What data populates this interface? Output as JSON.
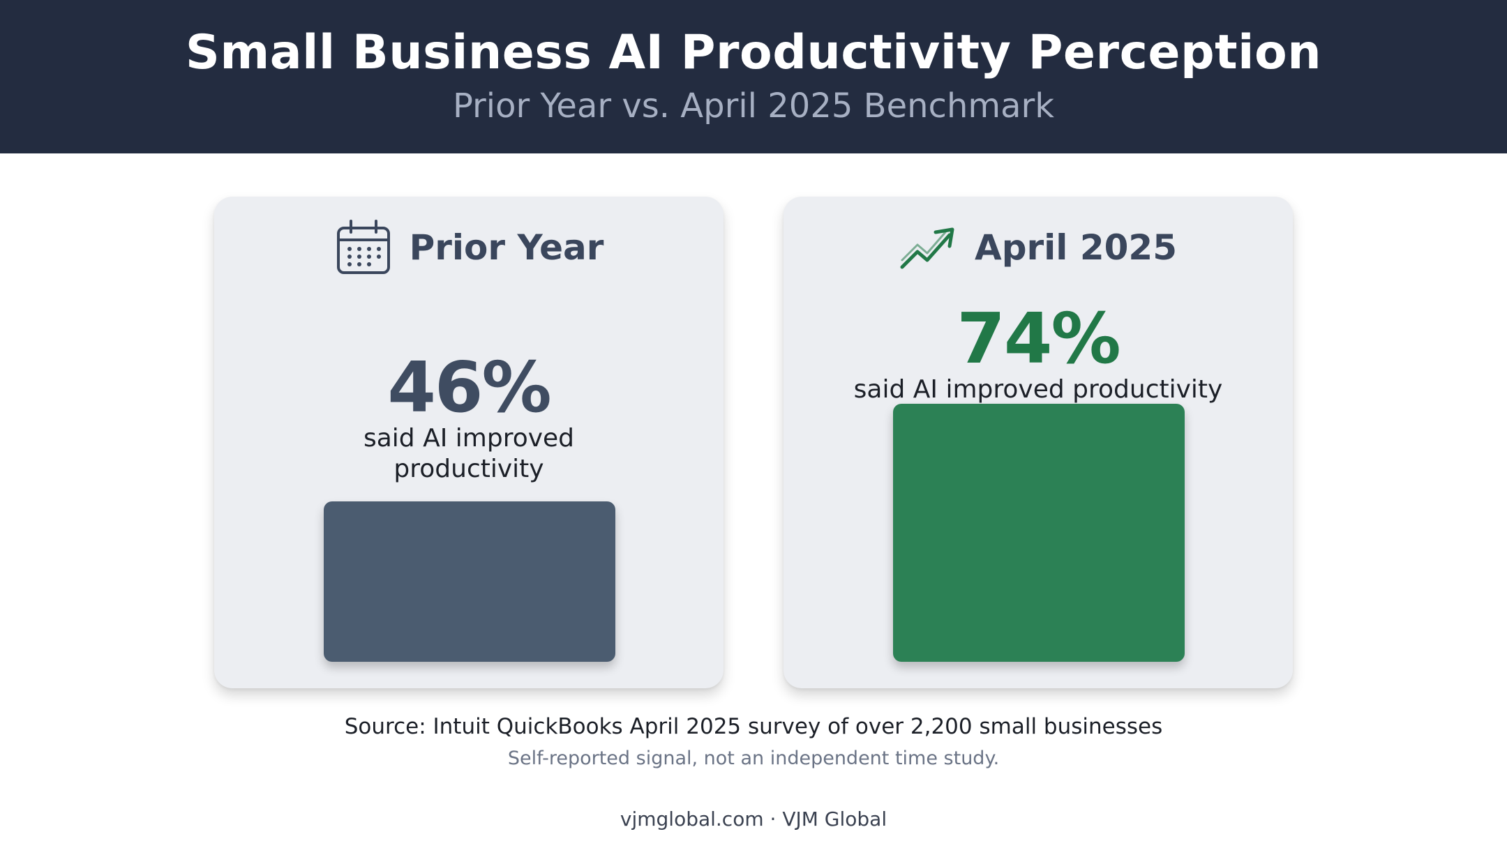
{
  "header": {
    "title": "Small Business AI Productivity Perception",
    "subtitle": "Prior Year vs. April 2025 Benchmark"
  },
  "cards": [
    {
      "label": "Prior Year",
      "icon": "calendar-icon",
      "value_text": "46%",
      "caption": "said AI improved productivity",
      "color": "#4b5c70",
      "value_color": "#3f4c61"
    },
    {
      "label": "April 2025",
      "icon": "trending-up-icon",
      "value_text": "74%",
      "caption": "said AI improved productivity",
      "color": "#2c8155",
      "value_color": "#217847"
    }
  ],
  "chart_data": {
    "type": "bar",
    "categories": [
      "Prior Year",
      "April 2025"
    ],
    "values": [
      46,
      74
    ],
    "title": "Small Business AI Productivity Perception",
    "subtitle": "Prior Year vs. April 2025 Benchmark",
    "ylim": [
      0,
      100
    ],
    "colors": [
      "#4b5c70",
      "#2c8155"
    ]
  },
  "footer": {
    "source": "Source: Intuit QuickBooks April 2025 survey of over 2,200 small businesses",
    "note": "Self-reported signal, not an independent time study.",
    "site": "vjmglobal.com · VJM Global"
  }
}
